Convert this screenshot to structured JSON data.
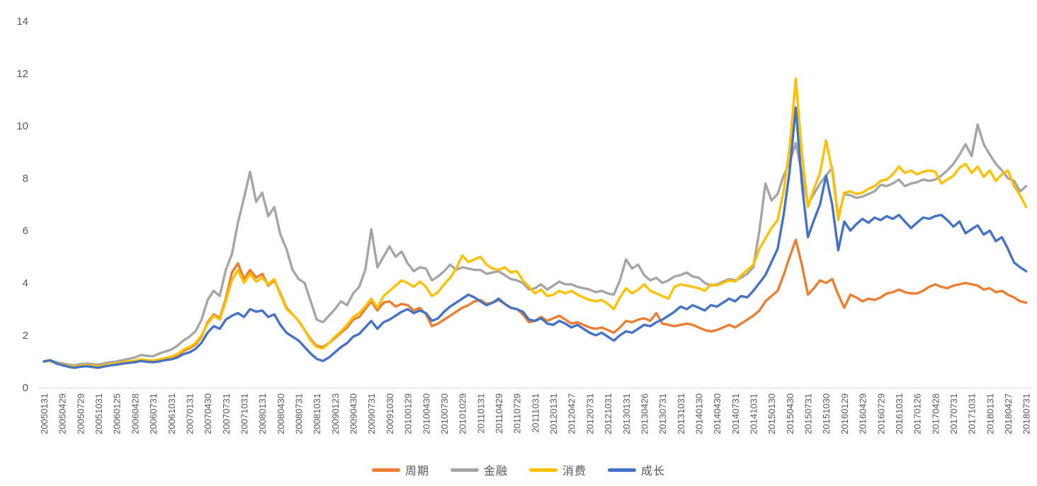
{
  "chart_data": {
    "type": "line",
    "title": "",
    "xlabel": "",
    "ylabel": "",
    "ylim": [
      0,
      14
    ],
    "y_ticks": [
      0,
      2,
      4,
      6,
      8,
      10,
      12,
      14
    ],
    "grid": false,
    "legend_position": "bottom",
    "sampling": "monthly (tick every 3rd point)",
    "points_per_tick": 3,
    "axis_color": "#D9D9D9",
    "label_color": "#595959",
    "x_tick_labels": [
      "20050131",
      "20050429",
      "20050729",
      "20051031",
      "20060125",
      "20060428",
      "20060731",
      "20061031",
      "20070131",
      "20070430",
      "20070731",
      "20071031",
      "20080131",
      "20080430",
      "20080731",
      "20081031",
      "20090123",
      "20090430",
      "20090731",
      "20091030",
      "20100129",
      "20100430",
      "20100730",
      "20101029",
      "20110131",
      "20110429",
      "20110729",
      "20111031",
      "20120131",
      "20120427",
      "20120731",
      "20121031",
      "20130131",
      "20130426",
      "20130731",
      "20131031",
      "20140130",
      "20140430",
      "20140731",
      "20141031",
      "20150130",
      "20150430",
      "20150731",
      "20151030",
      "20160129",
      "20160429",
      "20160729",
      "20161031",
      "20170126",
      "20170428",
      "20170731",
      "20171031",
      "20180131",
      "20180427",
      "20180731"
    ],
    "series": [
      {
        "name": "周期",
        "color": "#ED7D31",
        "values": [
          1.0,
          1.03,
          0.95,
          0.9,
          0.84,
          0.8,
          0.84,
          0.86,
          0.83,
          0.8,
          0.85,
          0.88,
          0.92,
          0.95,
          0.98,
          1.0,
          1.05,
          1.02,
          1.0,
          1.05,
          1.1,
          1.15,
          1.22,
          1.4,
          1.5,
          1.65,
          1.95,
          2.5,
          2.8,
          2.65,
          3.4,
          4.4,
          4.75,
          4.15,
          4.5,
          4.2,
          4.35,
          3.9,
          4.1,
          3.6,
          3.05,
          2.8,
          2.55,
          2.2,
          1.85,
          1.6,
          1.55,
          1.7,
          1.9,
          2.1,
          2.3,
          2.6,
          2.7,
          3.0,
          3.3,
          2.95,
          3.25,
          3.3,
          3.1,
          3.2,
          3.15,
          2.95,
          3.05,
          2.8,
          2.35,
          2.45,
          2.6,
          2.75,
          2.9,
          3.05,
          3.15,
          3.3,
          3.35,
          3.2,
          3.25,
          3.35,
          3.2,
          3.05,
          3.0,
          2.8,
          2.5,
          2.55,
          2.7,
          2.55,
          2.65,
          2.75,
          2.6,
          2.45,
          2.5,
          2.4,
          2.3,
          2.25,
          2.3,
          2.2,
          2.1,
          2.3,
          2.55,
          2.5,
          2.6,
          2.65,
          2.55,
          2.85,
          2.45,
          2.4,
          2.35,
          2.4,
          2.45,
          2.4,
          2.3,
          2.2,
          2.15,
          2.2,
          2.3,
          2.4,
          2.3,
          2.45,
          2.6,
          2.75,
          2.95,
          3.3,
          3.5,
          3.7,
          4.3,
          5.0,
          5.65,
          4.7,
          3.55,
          3.8,
          4.1,
          4.0,
          4.15,
          3.55,
          3.05,
          3.55,
          3.45,
          3.3,
          3.4,
          3.35,
          3.45,
          3.6,
          3.65,
          3.75,
          3.65,
          3.6,
          3.6,
          3.7,
          3.85,
          3.95,
          3.85,
          3.8,
          3.9,
          3.95,
          4.0,
          3.95,
          3.9,
          3.75,
          3.8,
          3.65,
          3.7,
          3.55,
          3.45,
          3.3,
          3.25
        ]
      },
      {
        "name": "金融",
        "color": "#A5A5A5",
        "values": [
          1.0,
          1.04,
          0.98,
          0.93,
          0.88,
          0.85,
          0.9,
          0.92,
          0.9,
          0.88,
          0.93,
          0.97,
          1.0,
          1.05,
          1.1,
          1.15,
          1.25,
          1.22,
          1.2,
          1.3,
          1.38,
          1.45,
          1.6,
          1.8,
          1.95,
          2.15,
          2.6,
          3.35,
          3.7,
          3.5,
          4.5,
          5.1,
          6.3,
          7.25,
          8.25,
          7.1,
          7.45,
          6.55,
          6.9,
          5.85,
          5.3,
          4.5,
          4.15,
          4.0,
          3.3,
          2.6,
          2.5,
          2.75,
          3.0,
          3.3,
          3.15,
          3.6,
          3.85,
          4.5,
          6.05,
          4.6,
          5.0,
          5.4,
          5.0,
          5.2,
          4.75,
          4.45,
          4.6,
          4.55,
          4.1,
          4.25,
          4.45,
          4.7,
          4.5,
          4.6,
          4.55,
          4.5,
          4.5,
          4.35,
          4.4,
          4.45,
          4.3,
          4.15,
          4.1,
          4.0,
          3.75,
          3.8,
          3.95,
          3.75,
          3.9,
          4.05,
          3.95,
          3.95,
          3.85,
          3.8,
          3.75,
          3.65,
          3.7,
          3.6,
          3.55,
          4.1,
          4.9,
          4.55,
          4.7,
          4.3,
          4.1,
          4.2,
          4.0,
          4.1,
          4.25,
          4.3,
          4.4,
          4.25,
          4.2,
          4.0,
          3.9,
          3.95,
          4.05,
          4.15,
          4.1,
          4.2,
          4.35,
          4.6,
          6.0,
          7.8,
          7.15,
          7.4,
          8.1,
          8.6,
          9.35,
          8.2,
          7.0,
          7.4,
          7.8,
          8.1,
          8.4,
          6.5,
          7.4,
          7.35,
          7.25,
          7.3,
          7.4,
          7.5,
          7.75,
          7.7,
          7.8,
          7.95,
          7.7,
          7.8,
          7.85,
          7.95,
          7.9,
          7.95,
          8.1,
          8.3,
          8.55,
          8.9,
          9.3,
          8.85,
          10.05,
          9.3,
          8.9,
          8.55,
          8.3,
          8.0,
          7.9,
          7.5,
          7.7
        ]
      },
      {
        "name": "消费",
        "color": "#FFC000",
        "values": [
          1.0,
          1.02,
          0.94,
          0.88,
          0.83,
          0.8,
          0.84,
          0.86,
          0.84,
          0.82,
          0.86,
          0.9,
          0.93,
          0.97,
          1.0,
          1.03,
          1.08,
          1.05,
          1.03,
          1.08,
          1.13,
          1.18,
          1.28,
          1.45,
          1.55,
          1.7,
          2.0,
          2.45,
          2.75,
          2.6,
          3.3,
          4.1,
          4.5,
          4.0,
          4.35,
          4.05,
          4.2,
          3.95,
          4.15,
          3.55,
          3.0,
          2.8,
          2.55,
          2.2,
          1.8,
          1.55,
          1.5,
          1.7,
          1.95,
          2.15,
          2.4,
          2.7,
          2.85,
          3.1,
          3.4,
          3.05,
          3.5,
          3.7,
          3.9,
          4.1,
          4.0,
          3.85,
          4.05,
          3.85,
          3.5,
          3.65,
          3.95,
          4.2,
          4.55,
          5.05,
          4.8,
          4.9,
          5.0,
          4.7,
          4.55,
          4.5,
          4.6,
          4.4,
          4.45,
          4.1,
          3.85,
          3.6,
          3.75,
          3.5,
          3.55,
          3.7,
          3.6,
          3.7,
          3.55,
          3.45,
          3.35,
          3.3,
          3.35,
          3.2,
          3.0,
          3.45,
          3.8,
          3.6,
          3.75,
          3.95,
          3.7,
          3.6,
          3.5,
          3.4,
          3.85,
          3.95,
          3.9,
          3.85,
          3.8,
          3.7,
          3.95,
          3.9,
          4.0,
          4.1,
          4.05,
          4.3,
          4.5,
          4.7,
          5.3,
          5.7,
          6.1,
          6.4,
          7.5,
          9.2,
          11.8,
          9.0,
          6.9,
          7.6,
          8.2,
          9.45,
          8.3,
          6.4,
          7.45,
          7.5,
          7.4,
          7.45,
          7.6,
          7.7,
          7.9,
          7.95,
          8.15,
          8.45,
          8.2,
          8.3,
          8.15,
          8.25,
          8.3,
          8.25,
          7.8,
          7.95,
          8.1,
          8.4,
          8.55,
          8.2,
          8.45,
          8.05,
          8.3,
          7.9,
          8.15,
          8.3,
          7.7,
          7.35,
          6.9
        ]
      },
      {
        "name": "成长",
        "color": "#4472C4",
        "values": [
          1.0,
          1.05,
          0.93,
          0.86,
          0.8,
          0.76,
          0.8,
          0.82,
          0.79,
          0.76,
          0.81,
          0.85,
          0.88,
          0.92,
          0.95,
          0.97,
          1.02,
          0.99,
          0.97,
          1.0,
          1.05,
          1.08,
          1.15,
          1.28,
          1.35,
          1.48,
          1.72,
          2.1,
          2.35,
          2.25,
          2.6,
          2.75,
          2.85,
          2.7,
          3.0,
          2.9,
          2.95,
          2.7,
          2.8,
          2.4,
          2.1,
          1.95,
          1.8,
          1.55,
          1.3,
          1.1,
          1.02,
          1.15,
          1.35,
          1.55,
          1.7,
          1.95,
          2.05,
          2.3,
          2.55,
          2.25,
          2.5,
          2.6,
          2.75,
          2.9,
          3.0,
          2.85,
          2.95,
          2.85,
          2.55,
          2.65,
          2.9,
          3.1,
          3.25,
          3.4,
          3.55,
          3.45,
          3.3,
          3.15,
          3.25,
          3.4,
          3.2,
          3.05,
          3.0,
          2.9,
          2.6,
          2.55,
          2.65,
          2.45,
          2.4,
          2.55,
          2.45,
          2.3,
          2.4,
          2.25,
          2.1,
          2.0,
          2.1,
          1.95,
          1.8,
          2.0,
          2.15,
          2.1,
          2.25,
          2.4,
          2.35,
          2.5,
          2.6,
          2.75,
          2.9,
          3.1,
          3.0,
          3.15,
          3.05,
          2.95,
          3.15,
          3.1,
          3.25,
          3.4,
          3.3,
          3.5,
          3.45,
          3.7,
          4.0,
          4.3,
          4.8,
          5.3,
          6.6,
          8.3,
          10.7,
          7.8,
          5.75,
          6.4,
          7.0,
          8.1,
          7.0,
          5.25,
          6.35,
          6.0,
          6.25,
          6.45,
          6.3,
          6.5,
          6.4,
          6.55,
          6.45,
          6.6,
          6.35,
          6.1,
          6.3,
          6.5,
          6.45,
          6.55,
          6.6,
          6.4,
          6.15,
          6.35,
          5.9,
          6.05,
          6.2,
          5.85,
          6.0,
          5.6,
          5.75,
          5.3,
          4.78,
          4.6,
          4.45
        ]
      }
    ]
  },
  "legend": {
    "items": [
      {
        "label": "周期",
        "color": "#ED7D31"
      },
      {
        "label": "金融",
        "color": "#A5A5A5"
      },
      {
        "label": "消费",
        "color": "#FFC000"
      },
      {
        "label": "成长",
        "color": "#4472C4"
      }
    ]
  }
}
